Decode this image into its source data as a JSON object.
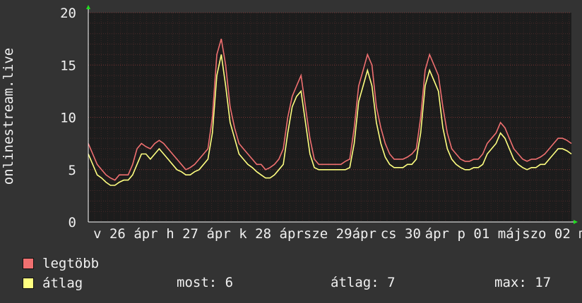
{
  "chart_data": {
    "type": "line",
    "ylabel": "onlinestream.live",
    "ylim": [
      0,
      20
    ],
    "yticks": [
      0,
      5,
      10,
      15,
      20
    ],
    "xticks": [
      "v 26",
      "ápr",
      "h 27",
      "ápr",
      "k 28",
      "ápr",
      "sze 29",
      "ápr",
      "cs 30",
      "ápr",
      "p 01",
      "máj",
      "szo 02",
      "m"
    ],
    "grid": true,
    "colors": {
      "background": "#333333",
      "plot_bg": "#1c1c1c",
      "grid": "#5a2a2a",
      "axis": "#ffffff"
    },
    "series": [
      {
        "name": "legtöbb",
        "color": "#f07070",
        "values": [
          7.5,
          6.5,
          5.5,
          5,
          4.5,
          4.2,
          4,
          4.5,
          4.5,
          4.5,
          5.5,
          7,
          7.5,
          7.2,
          7,
          7.5,
          7.8,
          7.5,
          7,
          6.5,
          6,
          5.5,
          5,
          5.2,
          5.5,
          6,
          6.5,
          7,
          10,
          16,
          17.5,
          15,
          11,
          9,
          7.5,
          7,
          6.5,
          6,
          5.5,
          5.5,
          5,
          5.2,
          5.5,
          6,
          7,
          10,
          12,
          13,
          14,
          11,
          8,
          6,
          5.5,
          5.5,
          5.5,
          5.5,
          5.5,
          5.5,
          5.8,
          6,
          9,
          13,
          14.5,
          16,
          15,
          11,
          9,
          7.5,
          6.5,
          6,
          6,
          6,
          6.2,
          6.5,
          7,
          10,
          14.5,
          16,
          15,
          14,
          11,
          8.5,
          7,
          6.5,
          6,
          5.8,
          5.8,
          6,
          6,
          6.5,
          7.5,
          8,
          8.5,
          9.5,
          9,
          8,
          7,
          6.5,
          6,
          5.8,
          6,
          6,
          6.2,
          6.5,
          7,
          7.5,
          8,
          8,
          7.8,
          7.5
        ]
      },
      {
        "name": "átlag",
        "color": "#ffff80",
        "values": [
          6.5,
          5.5,
          4.5,
          4.2,
          3.8,
          3.5,
          3.5,
          3.8,
          4,
          4,
          4.5,
          5.5,
          6.5,
          6.5,
          6,
          6.5,
          7,
          6.5,
          6,
          5.5,
          5,
          4.8,
          4.5,
          4.5,
          4.8,
          5,
          5.5,
          6,
          8.5,
          14,
          16,
          13,
          9.5,
          8,
          6.5,
          6,
          5.5,
          5.2,
          4.8,
          4.5,
          4.2,
          4.2,
          4.5,
          5,
          5.5,
          8.5,
          11,
          12,
          12.5,
          9.5,
          6.5,
          5.2,
          5,
          5,
          5,
          5,
          5,
          5,
          5,
          5.2,
          7.5,
          11.5,
          13,
          14.5,
          13,
          9.5,
          7.5,
          6.2,
          5.5,
          5.2,
          5.2,
          5.2,
          5.5,
          5.5,
          6,
          8.5,
          13,
          14.5,
          13.5,
          12.5,
          9,
          7,
          6,
          5.5,
          5.2,
          5,
          5,
          5.2,
          5.2,
          5.5,
          6.5,
          7,
          7.5,
          8.5,
          8,
          7,
          6,
          5.5,
          5.2,
          5,
          5.2,
          5.2,
          5.5,
          5.5,
          6,
          6.5,
          7,
          7,
          6.8,
          6.5
        ]
      }
    ],
    "stats": {
      "now_label": "most:",
      "now_value": "6",
      "avg_label": "átlag:",
      "avg_value": "7",
      "max_label": "max:",
      "max_value": "17"
    }
  }
}
